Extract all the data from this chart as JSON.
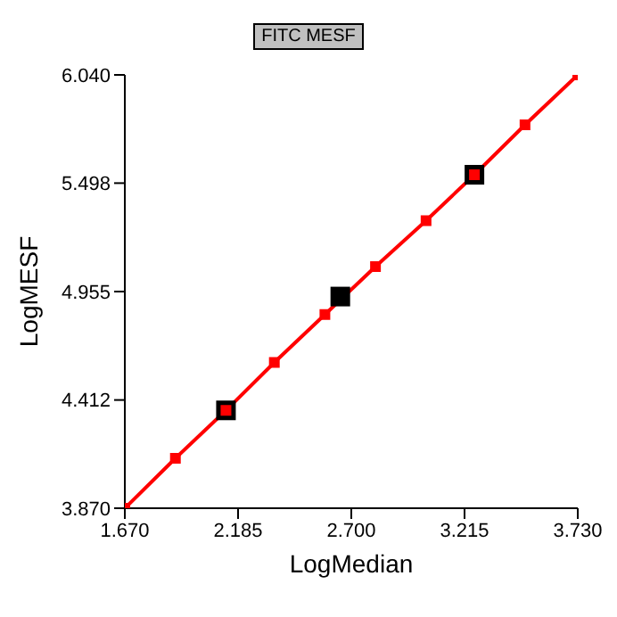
{
  "chart_data": {
    "type": "line",
    "title": "FITC MESF",
    "xlabel": "LogMedian",
    "ylabel": "LogMESF",
    "xlim": [
      1.67,
      3.73
    ],
    "xticks": [
      {
        "value": 1.67,
        "label": "1.670"
      },
      2.185,
      {
        "value": 2.7,
        "label": "2.700"
      },
      3.215,
      {
        "value": 3.73,
        "label": "3.730"
      }
    ],
    "ylim": [
      3.87,
      6.04
    ],
    "yticks": [
      {
        "value": 3.87,
        "label": "3.870"
      },
      4.412,
      4.955,
      5.498,
      {
        "value": 6.04,
        "label": "6.040"
      }
    ],
    "grid": false,
    "legend": false,
    "series": [
      {
        "type": "scatter",
        "color": "#000000",
        "marker": "square",
        "x": [
          2.13,
          2.65,
          3.26
        ],
        "values": [
          4.36,
          4.93,
          5.54
        ]
      },
      {
        "color": "#ff0000",
        "marker": "square",
        "line_style": "solid",
        "x": [
          1.67,
          1.9,
          2.13,
          2.35,
          2.58,
          2.81,
          3.04,
          3.26,
          3.49,
          3.73
        ],
        "values": [
          3.87,
          4.12,
          4.36,
          4.6,
          4.84,
          5.08,
          5.31,
          5.54,
          5.79,
          6.04
        ]
      }
    ]
  }
}
